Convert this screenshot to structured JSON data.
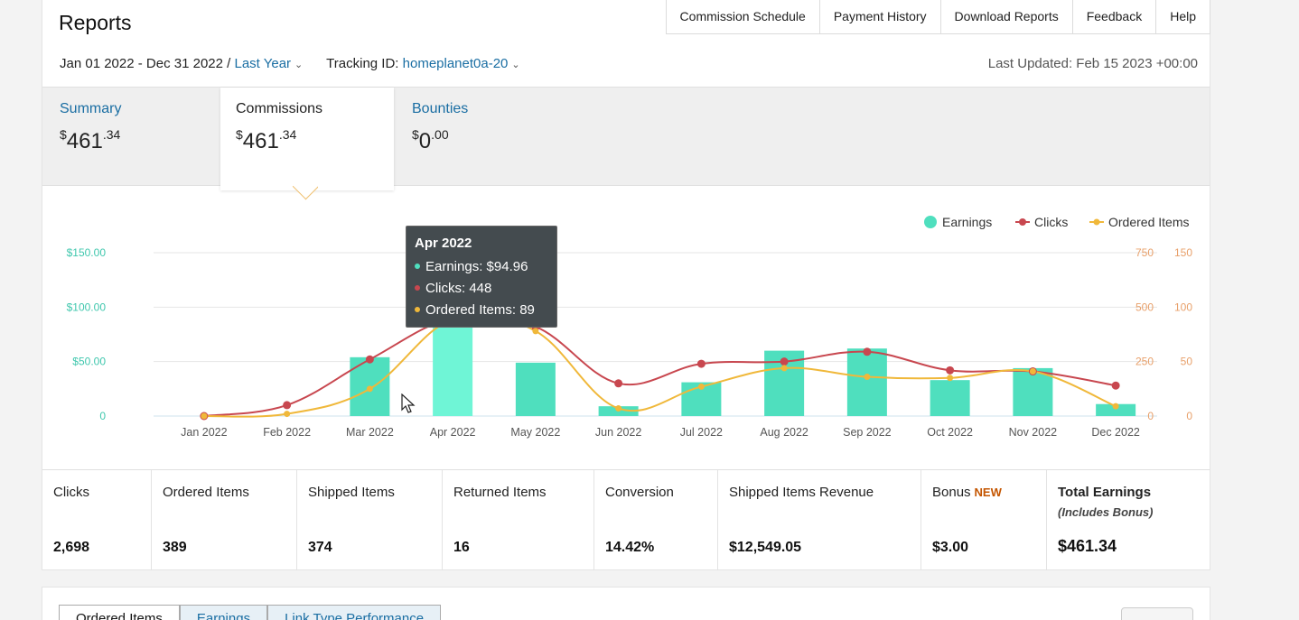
{
  "header": {
    "title": "Reports",
    "nav": [
      "Commission Schedule",
      "Payment History",
      "Download Reports",
      "Feedback",
      "Help"
    ]
  },
  "filters": {
    "date_range": "Jan 01 2022 - Dec 31 2022 /",
    "period": "Last Year",
    "tracking_label": "Tracking ID:",
    "tracking_id": "homeplanet0a-20",
    "last_updated": "Last Updated: Feb 15 2023 +00:00"
  },
  "tabs": [
    {
      "label": "Summary",
      "currency": "$",
      "whole": "461",
      "cents": ".34"
    },
    {
      "label": "Commissions",
      "currency": "$",
      "whole": "461",
      "cents": ".34"
    },
    {
      "label": "Bounties",
      "currency": "$",
      "whole": "0",
      "cents": ".00"
    }
  ],
  "tooltip": {
    "title": "Apr 2022",
    "earnings": "Earnings: $94.96",
    "clicks": "Clicks: 448",
    "ordered": "Ordered Items: 89"
  },
  "colors": {
    "earnings": "#4fdfbe",
    "earnings_hover": "#6ff5d6",
    "clicks": "#c8474f",
    "ordered": "#f0b83a",
    "axis_left": "#3fc7ad",
    "axis_right": "#e8a06a"
  },
  "chart_data": {
    "type": "bar",
    "categories": [
      "Jan 2022",
      "Feb 2022",
      "Mar 2022",
      "Apr 2022",
      "May 2022",
      "Jun 2022",
      "Jul 2022",
      "Aug 2022",
      "Sep 2022",
      "Oct 2022",
      "Nov 2022",
      "Dec 2022"
    ],
    "series": [
      {
        "name": "Earnings",
        "type": "bar",
        "axis": "left",
        "values": [
          0,
          0,
          54,
          94.96,
          49,
          9,
          31,
          60,
          62,
          33,
          44,
          11
        ]
      },
      {
        "name": "Clicks",
        "type": "line",
        "axis": "right-1",
        "values": [
          0,
          50,
          260,
          448,
          410,
          150,
          240,
          250,
          295,
          210,
          205,
          140
        ]
      },
      {
        "name": "Ordered Items",
        "type": "line",
        "axis": "right-2",
        "values": [
          0,
          2,
          25,
          89,
          78,
          7,
          27,
          44,
          36,
          35,
          41,
          9
        ]
      }
    ],
    "left_ticks": [
      "$150.00",
      "$100.00",
      "$50.00",
      "0"
    ],
    "right1_ticks": [
      "750",
      "500",
      "250",
      "0"
    ],
    "right2_ticks": [
      "150",
      "100",
      "50",
      "0"
    ],
    "ylim_left": [
      0,
      150
    ],
    "ylim_right1": [
      0,
      750
    ],
    "ylim_right2": [
      0,
      150
    ],
    "legend": [
      "Earnings",
      "Clicks",
      "Ordered Items"
    ],
    "legend_position": "top-right",
    "grid": true
  },
  "metrics": [
    {
      "label": "Clicks",
      "value": "2,698"
    },
    {
      "label": "Ordered Items",
      "value": "389"
    },
    {
      "label": "Shipped Items",
      "value": "374"
    },
    {
      "label": "Returned Items",
      "value": "16"
    },
    {
      "label": "Conversion",
      "value": "14.42%"
    },
    {
      "label": "Shipped Items Revenue",
      "value": "$12,549.05"
    },
    {
      "label": "Bonus",
      "tag": "NEW",
      "value": "$3.00"
    },
    {
      "label": "Total Earnings",
      "sub": "(Includes Bonus)",
      "value": "$461.34"
    }
  ],
  "bottom_tabs": [
    "Ordered Items",
    "Earnings",
    "Link Type Performance"
  ]
}
